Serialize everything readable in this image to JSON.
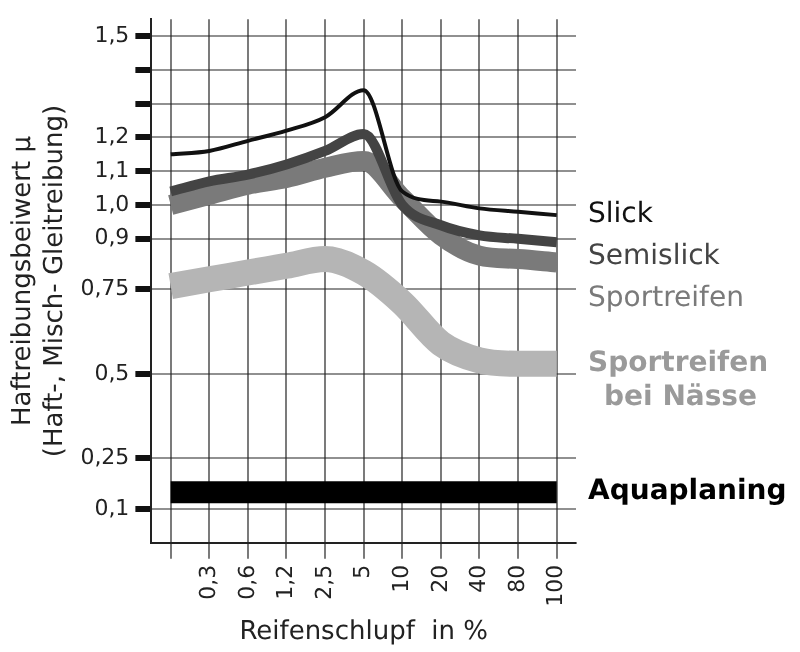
{
  "chart_data": {
    "type": "line",
    "xlabel": "Reifenschlupf  in %",
    "ylabel": "Haftreibungsbeiwert μ\n(Haft-, Misch- Gleitreibung)",
    "categories": [
      null,
      "0,3",
      "0,6",
      "1,2",
      "2,5",
      "5",
      "10",
      "20",
      "40",
      "80",
      "100"
    ],
    "series": [
      {
        "name": "Slick",
        "color": "#111111",
        "values": [
          1.15,
          1.16,
          1.19,
          1.22,
          1.26,
          1.34,
          1.04,
          1.01,
          0.99,
          0.98,
          0.97
        ]
      },
      {
        "name": "Semislick",
        "color": "#444444",
        "values": [
          1.04,
          1.07,
          1.09,
          1.12,
          1.16,
          1.21,
          1.0,
          0.94,
          0.91,
          0.9,
          0.89
        ]
      },
      {
        "name": "Sportreifen",
        "color": "#7a7a7a",
        "values": [
          1.0,
          1.03,
          1.06,
          1.08,
          1.11,
          1.13,
          1.02,
          0.91,
          0.85,
          0.84,
          0.83
        ]
      },
      {
        "name": "Sportreifen bei Nässe",
        "color": "#b5b5b5",
        "values": [
          0.76,
          0.78,
          0.8,
          0.82,
          0.84,
          0.8,
          0.71,
          0.59,
          0.54,
          0.53,
          0.53
        ]
      },
      {
        "name": "Aquaplaning",
        "color": "#000000",
        "values": [
          0.15,
          0.15,
          0.15,
          0.15,
          0.15,
          0.15,
          0.15,
          0.15,
          0.15,
          0.15,
          0.15
        ]
      }
    ],
    "ylim": [
      0,
      1.55
    ],
    "yticks": [
      {
        "value": 0.1,
        "label": "0,1"
      },
      {
        "value": 0.25,
        "label": "0,25"
      },
      {
        "value": 0.5,
        "label": "0,5"
      },
      {
        "value": 0.75,
        "label": "0,75"
      },
      {
        "value": 0.9,
        "label": "0,9"
      },
      {
        "value": 1.0,
        "label": "1,0"
      },
      {
        "value": 1.1,
        "label": "1,1"
      },
      {
        "value": 1.2,
        "label": "1,2"
      },
      {
        "value": 1.3,
        "label": null
      },
      {
        "value": 1.4,
        "label": null
      },
      {
        "value": 1.5,
        "label": "1,5"
      }
    ],
    "grid": true,
    "legend": false,
    "marker": "none",
    "line_style": "solid"
  }
}
